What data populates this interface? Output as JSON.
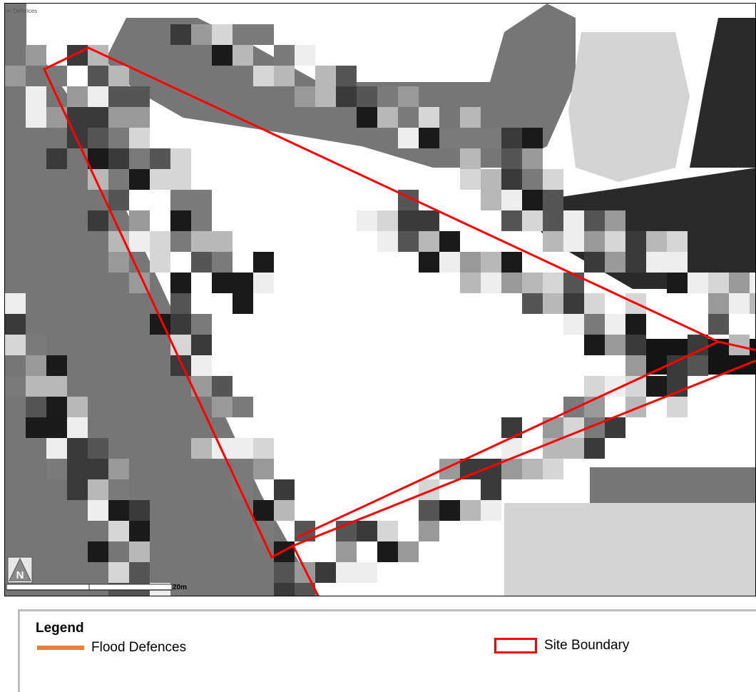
{
  "map": {
    "layer_title": "er Defences",
    "scale_label": "20m",
    "north_label": "N"
  },
  "legend": {
    "title": "Legend",
    "items": [
      {
        "label": "Flood Defences",
        "symbol": "line",
        "color": "#ed7d31"
      },
      {
        "label": "Site Boundary",
        "symbol": "outline-box",
        "color": "#ff0000"
      }
    ]
  },
  "colors": {
    "site_boundary": "#ff0000",
    "flood_defences": "#ed7d31"
  }
}
